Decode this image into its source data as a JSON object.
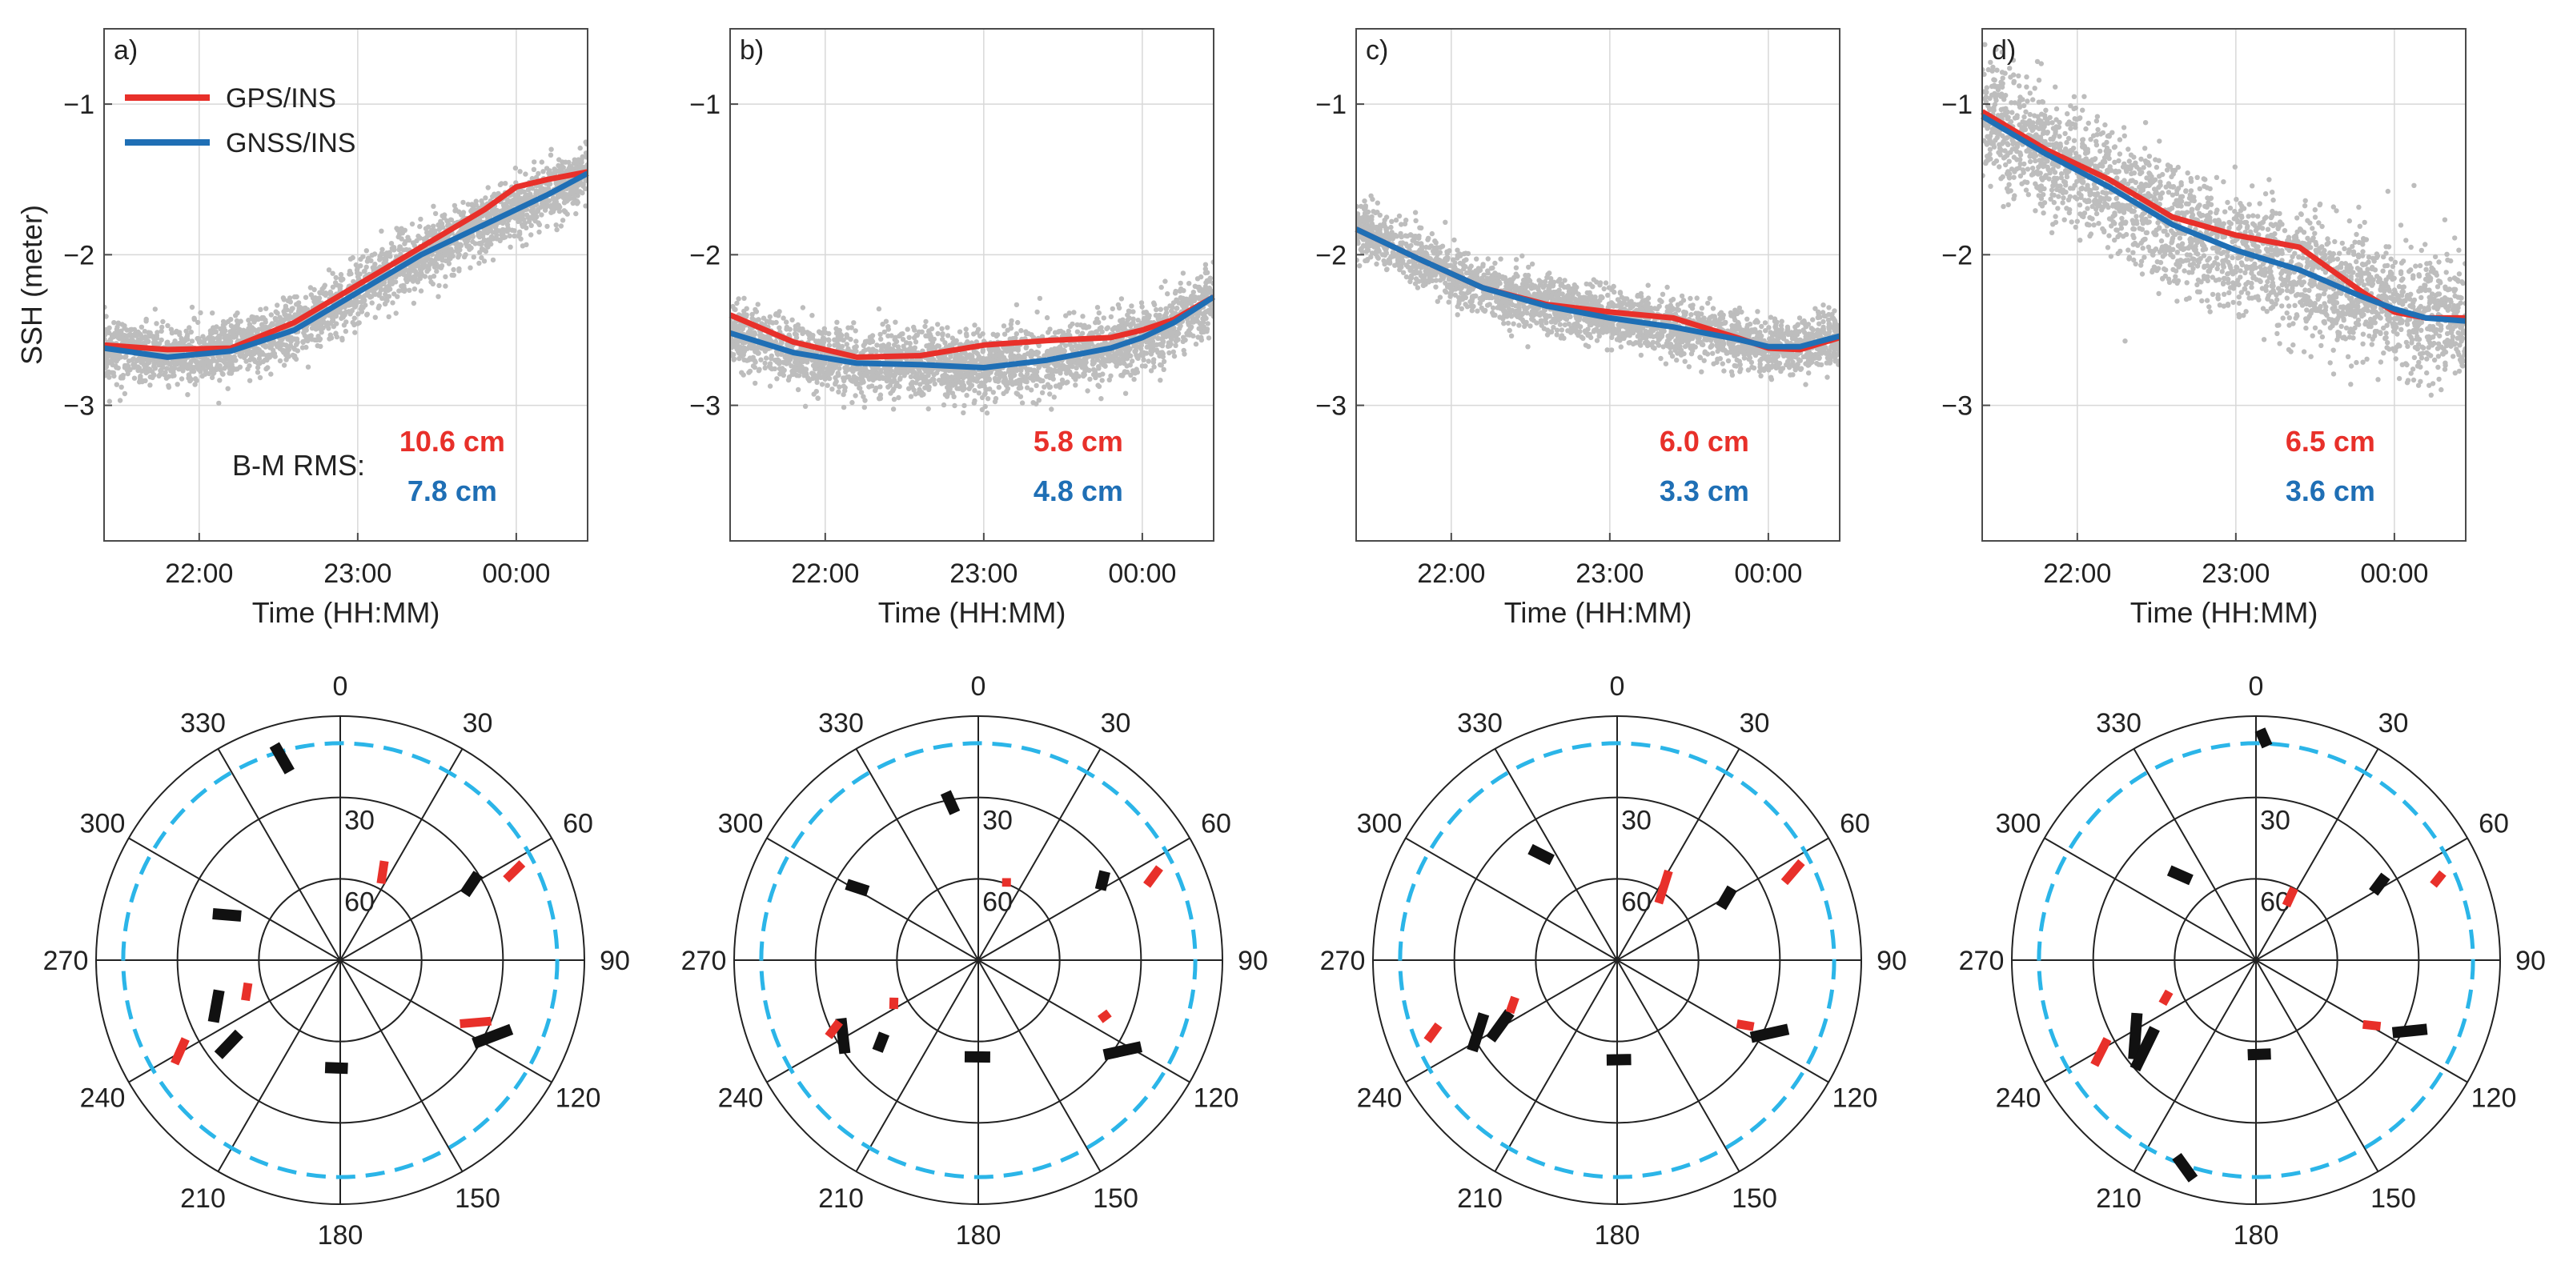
{
  "chart_data": {
    "type": "scatter",
    "legend": {
      "location": "top-left of panel a",
      "entries": [
        {
          "name": "GPS/INS",
          "color": "#e8302a"
        },
        {
          "name": "GNSS/INS",
          "color": "#1f6fb5"
        }
      ]
    },
    "rms_caption": "B-M RMS:",
    "colors": {
      "gps_ins": "#e8302a",
      "gnss_ins": "#1f6fb5",
      "raw_points": "#bdbdbd",
      "sky_black": "#111111",
      "sky_red": "#e8302a",
      "cutoff_ring": "#2bb5e8"
    },
    "ylabel": "SSH (meter)",
    "xlabel": "Time (HH:MM)",
    "x_unit": "hours since 00:00 (negative = previous day)",
    "xlim": [
      -2.6,
      0.45
    ],
    "ylim": [
      -3.9,
      -0.5
    ],
    "xticks": [
      -2,
      -1,
      0
    ],
    "xtick_labels": [
      "22:00",
      "23:00",
      "00:00"
    ],
    "yticks": [
      -1,
      -2,
      -3
    ],
    "ytick_labels": [
      "−1",
      "−2",
      "−3"
    ],
    "panels": [
      {
        "label": "a)",
        "rms_gps": "10.6 cm",
        "rms_gnss": "7.8 cm",
        "spread": 0.1,
        "gps_ins": {
          "x": [
            -2.6,
            -2.2,
            -1.8,
            -1.4,
            -1.0,
            -0.6,
            -0.2,
            0.0,
            0.2,
            0.45
          ],
          "y": [
            -2.6,
            -2.63,
            -2.62,
            -2.45,
            -2.2,
            -1.95,
            -1.7,
            -1.55,
            -1.5,
            -1.45
          ]
        },
        "gnss_ins": {
          "x": [
            -2.6,
            -2.2,
            -1.8,
            -1.4,
            -1.0,
            -0.6,
            -0.2,
            0.0,
            0.2,
            0.45
          ],
          "y": [
            -2.62,
            -2.68,
            -2.64,
            -2.5,
            -2.25,
            -2.0,
            -1.8,
            -1.7,
            -1.6,
            -1.46
          ]
        }
      },
      {
        "label": "b)",
        "rms_gps": "5.8 cm",
        "rms_gnss": "4.8 cm",
        "spread": 0.11,
        "gps_ins": {
          "x": [
            -2.6,
            -2.2,
            -1.8,
            -1.4,
            -1.0,
            -0.6,
            -0.2,
            0.0,
            0.2,
            0.45
          ],
          "y": [
            -2.4,
            -2.58,
            -2.68,
            -2.67,
            -2.6,
            -2.57,
            -2.55,
            -2.5,
            -2.43,
            -2.28
          ]
        },
        "gnss_ins": {
          "x": [
            -2.6,
            -2.2,
            -1.8,
            -1.4,
            -1.0,
            -0.6,
            -0.2,
            0.0,
            0.2,
            0.45
          ],
          "y": [
            -2.52,
            -2.65,
            -2.72,
            -2.73,
            -2.75,
            -2.7,
            -2.62,
            -2.55,
            -2.45,
            -2.28
          ]
        }
      },
      {
        "label": "c)",
        "rms_gps": "6.0 cm",
        "rms_gnss": "3.3 cm",
        "spread": 0.09,
        "gps_ins": {
          "x": [
            -2.6,
            -2.2,
            -1.8,
            -1.4,
            -1.0,
            -0.6,
            -0.2,
            0.0,
            0.2,
            0.45
          ],
          "y": [
            -1.83,
            -2.03,
            -2.22,
            -2.33,
            -2.38,
            -2.42,
            -2.55,
            -2.62,
            -2.63,
            -2.55
          ]
        },
        "gnss_ins": {
          "x": [
            -2.6,
            -2.2,
            -1.8,
            -1.4,
            -1.0,
            -0.6,
            -0.2,
            0.0,
            0.2,
            0.45
          ],
          "y": [
            -1.83,
            -2.03,
            -2.22,
            -2.34,
            -2.42,
            -2.48,
            -2.56,
            -2.61,
            -2.61,
            -2.54
          ]
        }
      },
      {
        "label": "d)",
        "rms_gps": "6.5 cm",
        "rms_gnss": "3.6 cm",
        "spread": 0.2,
        "gps_ins": {
          "x": [
            -2.6,
            -2.2,
            -1.8,
            -1.4,
            -1.0,
            -0.6,
            -0.2,
            0.0,
            0.2,
            0.45
          ],
          "y": [
            -1.05,
            -1.3,
            -1.5,
            -1.75,
            -1.87,
            -1.95,
            -2.25,
            -2.38,
            -2.42,
            -2.42
          ]
        },
        "gnss_ins": {
          "x": [
            -2.6,
            -2.2,
            -1.8,
            -1.4,
            -1.0,
            -0.6,
            -0.2,
            0.0,
            0.2,
            0.45
          ],
          "y": [
            -1.08,
            -1.33,
            -1.55,
            -1.8,
            -1.97,
            -2.1,
            -2.28,
            -2.36,
            -2.42,
            -2.44
          ]
        }
      }
    ],
    "skyplot": {
      "type": "polar",
      "azimuth_labels": [
        "0",
        "30",
        "60",
        "90",
        "120",
        "150",
        "180",
        "210",
        "240",
        "270",
        "300",
        "330"
      ],
      "elevation_labels": [
        "30",
        "60"
      ],
      "elevation_rings": [
        0,
        30,
        60
      ],
      "cutoff_elevation": 10,
      "panels": [
        {
          "tracks": [
            {
              "color": "black",
              "points": [
                [
                  343,
                  7
                ],
                [
                  345,
                  18
                ]
              ]
            },
            {
              "color": "red",
              "points": [
                [
                  24,
                  50
                ],
                [
                  28,
                  58
                ]
              ]
            },
            {
              "color": "black",
              "points": [
                [
                  58,
                  30
                ],
                [
                  62,
                  38
                ]
              ]
            },
            {
              "color": "red",
              "points": [
                [
                  62,
                  14
                ],
                [
                  64,
                  22
                ]
              ]
            },
            {
              "color": "black",
              "points": [
                [
                  290,
                  40
                ],
                [
                  294,
                  50
                ]
              ]
            },
            {
              "color": "black",
              "points": [
                [
                  244,
                  38
                ],
                [
                  256,
                  44
                ]
              ]
            },
            {
              "color": "red",
              "points": [
                [
                  247,
                  52
                ],
                [
                  256,
                  55
                ]
              ]
            },
            {
              "color": "black",
              "points": [
                [
                  232,
                  33
                ],
                [
                  234,
                  44
                ]
              ]
            },
            {
              "color": "red",
              "points": [
                [
                  238,
                  18
                ],
                [
                  243,
                  26
                ]
              ]
            },
            {
              "color": "black",
              "points": [
                [
                  176,
                  50
                ],
                [
                  188,
                  50
                ]
              ]
            },
            {
              "color": "red",
              "points": [
                [
                  112,
                  30
                ],
                [
                  118,
                  40
                ]
              ]
            },
            {
              "color": "black",
              "points": [
                [
                  112,
                  22
                ],
                [
                  122,
                  32
                ]
              ]
            }
          ]
        },
        {
          "tracks": [
            {
              "color": "black",
              "points": [
                [
                  349,
                  27
                ],
                [
                  351,
                  35
                ]
              ]
            },
            {
              "color": "red",
              "points": [
                [
                  19,
                  58
                ],
                [
                  21,
                  61
                ]
              ]
            },
            {
              "color": "black",
              "points": [
                [
                  55,
                  33
                ],
                [
                  60,
                  38
                ]
              ]
            },
            {
              "color": "red",
              "points": [
                [
                  63,
                  15
                ],
                [
                  66,
                  22
                ]
              ]
            },
            {
              "color": "black",
              "points": [
                [
                  300,
                  34
                ],
                [
                  302,
                  42
                ]
              ]
            },
            {
              "color": "black",
              "points": [
                [
                  235,
                  30
                ],
                [
                  247,
                  35
                ]
              ]
            },
            {
              "color": "red",
              "points": [
                [
                  240,
                  54
                ],
                [
                  246,
                  56
                ]
              ]
            },
            {
              "color": "black",
              "points": [
                [
                  228,
                  40
                ],
                [
                  232,
                  46
                ]
              ]
            },
            {
              "color": "red",
              "points": [
                [
                  243,
                  28
                ],
                [
                  246,
                  34
                ]
              ]
            },
            {
              "color": "black",
              "points": [
                [
                  173,
                  54
                ],
                [
                  188,
                  54
                ]
              ]
            },
            {
              "color": "red",
              "points": [
                [
                  112,
                  38
                ],
                [
                  116,
                  40
                ]
              ]
            },
            {
              "color": "black",
              "points": [
                [
                  118,
                  22
                ],
                [
                  127,
                  32
                ]
              ]
            }
          ]
        },
        {
          "tracks": [
            {
              "color": "red",
              "points": [
                [
                  30,
                  52
                ],
                [
                  36,
                  64
                ]
              ]
            },
            {
              "color": "black",
              "points": [
                [
                  322,
                  38
                ],
                [
                  327,
                  46
                ]
              ]
            },
            {
              "color": "black",
              "points": [
                [
                  58,
                  40
                ],
                [
                  63,
                  47
                ]
              ]
            },
            {
              "color": "red",
              "points": [
                [
                  62,
                  13
                ],
                [
                  65,
                  22
                ]
              ]
            },
            {
              "color": "black",
              "points": [
                [
                  238,
                  35
                ],
                [
                  244,
                  46
                ]
              ]
            },
            {
              "color": "red",
              "points": [
                [
                  244,
                  46
                ],
                [
                  250,
                  50
                ]
              ]
            },
            {
              "color": "black",
              "points": [
                [
                  238,
                  27
                ],
                [
                  248,
                  37
                ]
              ]
            },
            {
              "color": "red",
              "points": [
                [
                  247,
                  14
                ],
                [
                  250,
                  20
                ]
              ]
            },
            {
              "color": "black",
              "points": [
                [
                  172,
                  53
                ],
                [
                  186,
                  53
                ]
              ]
            },
            {
              "color": "red",
              "points": [
                [
                  116,
                  34
                ],
                [
                  118,
                  40
                ]
              ]
            },
            {
              "color": "black",
              "points": [
                [
                  112,
                  22
                ],
                [
                  120,
                  33
                ]
              ]
            }
          ]
        },
        {
          "tracks": [
            {
              "color": "black",
              "points": [
                [
                  1,
                  5
                ],
                [
                  3,
                  11
                ]
              ]
            },
            {
              "color": "red",
              "points": [
                [
                  28,
                  60
                ],
                [
                  29,
                  67
                ]
              ]
            },
            {
              "color": "black",
              "points": [
                [
                  57,
                  33
                ],
                [
                  60,
                  40
                ]
              ]
            },
            {
              "color": "red",
              "points": [
                [
                  65,
                  14
                ],
                [
                  67,
                  19
                ]
              ]
            },
            {
              "color": "black",
              "points": [
                [
                  316,
                  44
                ],
                [
                  321,
                  52
                ]
              ]
            },
            {
              "color": "black",
              "points": [
                [
                  231,
                  32
                ],
                [
                  246,
                  42
                ]
              ]
            },
            {
              "color": "red",
              "points": [
                [
                  245,
                  52
                ],
                [
                  250,
                  56
                ]
              ]
            },
            {
              "color": "black",
              "points": [
                [
                  228,
                  30
                ],
                [
                  236,
                  45
                ]
              ]
            },
            {
              "color": "red",
              "points": [
                [
                  237,
                  19
                ],
                [
                  242,
                  28
                ]
              ]
            },
            {
              "color": "black",
              "points": [
                [
                  171,
                  55
                ],
                [
                  185,
                  55
                ]
              ]
            },
            {
              "color": "red",
              "points": [
                [
                  118,
                  38
                ],
                [
                  121,
                  44
                ]
              ]
            },
            {
              "color": "black",
              "points": [
                [
                  112,
                  22
                ],
                [
                  118,
                  33
                ]
              ]
            },
            {
              "color": "black",
              "points": [
                [
                  196,
                  6
                ],
                [
                  202,
                  12
                ]
              ]
            }
          ]
        }
      ]
    }
  }
}
